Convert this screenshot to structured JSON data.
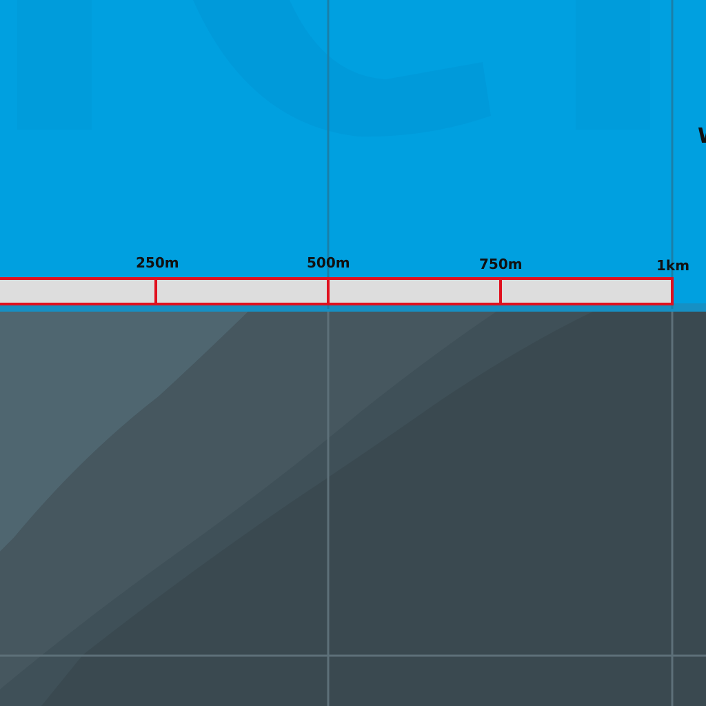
{
  "map": {
    "water_color": "#00a0e0",
    "water_shade_color": "#0098d8",
    "land_light_color": "#4f6670",
    "land_mid_color": "#46575f",
    "land_dark_color": "#3a4950",
    "grid_line_water_color": "#1a7fa8",
    "grid_line_land_color": "#5d7079",
    "shore_color": "#1690c4",
    "edge_label_text": "W"
  },
  "scale_bar": {
    "fill_color": "#dddddd",
    "border_color": "#e0101e",
    "labels": [
      "250m",
      "500m",
      "750m",
      "1km"
    ]
  }
}
